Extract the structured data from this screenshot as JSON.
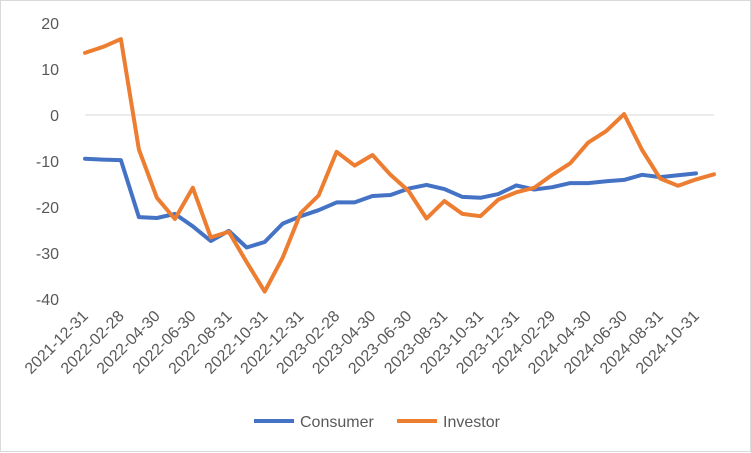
{
  "chart_data": {
    "type": "line",
    "title": "",
    "xlabel": "",
    "ylabel": "",
    "ylim": [
      -40,
      20
    ],
    "yticks": [
      20,
      10,
      0,
      -10,
      -20,
      -30,
      -40
    ],
    "grid": false,
    "legend": "bottom",
    "x": [
      "2021-12-31",
      "2022-01-31",
      "2022-02-28",
      "2022-03-31",
      "2022-04-30",
      "2022-05-31",
      "2022-06-30",
      "2022-07-31",
      "2022-08-31",
      "2022-09-30",
      "2022-10-31",
      "2022-11-30",
      "2022-12-31",
      "2023-01-31",
      "2023-02-28",
      "2023-03-31",
      "2023-04-30",
      "2023-05-31",
      "2023-06-30",
      "2023-07-31",
      "2023-08-31",
      "2023-09-30",
      "2023-10-31",
      "2023-11-30",
      "2023-12-31",
      "2024-01-31",
      "2024-02-29",
      "2024-03-31",
      "2024-04-30",
      "2024-05-31",
      "2024-06-30",
      "2024-07-31",
      "2024-08-31",
      "2024-09-30",
      "2024-10-31",
      "2024-11-30"
    ],
    "xtick_labels": [
      "2021-12-31",
      "2022-02-28",
      "2022-04-30",
      "2022-06-30",
      "2022-08-31",
      "2022-10-31",
      "2022-12-31",
      "2023-02-28",
      "2023-04-30",
      "2023-06-30",
      "2023-08-31",
      "2023-10-31",
      "2023-12-31",
      "2024-02-29",
      "2024-04-30",
      "2024-06-30",
      "2024-08-31",
      "2024-10-31"
    ],
    "series": [
      {
        "name": "Consumer",
        "color": "#4472c4",
        "values": [
          -9.5,
          -9.7,
          -9.8,
          -22.2,
          -22.4,
          -21.5,
          -24.2,
          -27.4,
          -25.2,
          -28.8,
          -27.6,
          -23.6,
          -22.0,
          -20.7,
          -19.0,
          -19.0,
          -17.6,
          -17.4,
          -16.0,
          -15.2,
          -16.1,
          -17.8,
          -18.0,
          -17.2,
          -15.3,
          -16.2,
          -15.7,
          -14.8,
          -14.8,
          -14.4,
          -14.1,
          -13.0,
          -13.5,
          -13.1,
          -12.7,
          null
        ]
      },
      {
        "name": "Investor",
        "color": "#ed7d31",
        "values": [
          13.5,
          14.8,
          16.5,
          -7.5,
          -18.0,
          -22.6,
          -15.8,
          -26.6,
          -25.4,
          -32.0,
          -38.4,
          -31.0,
          -21.3,
          -17.5,
          -8.0,
          -11.0,
          -8.7,
          -13.0,
          -16.5,
          -22.5,
          -18.7,
          -21.5,
          -22.0,
          -18.4,
          -16.8,
          -15.8,
          -13.0,
          -10.5,
          -6.0,
          -3.5,
          0.2,
          -7.6,
          -13.8,
          -15.4,
          -14.0,
          -12.9
        ]
      }
    ]
  }
}
